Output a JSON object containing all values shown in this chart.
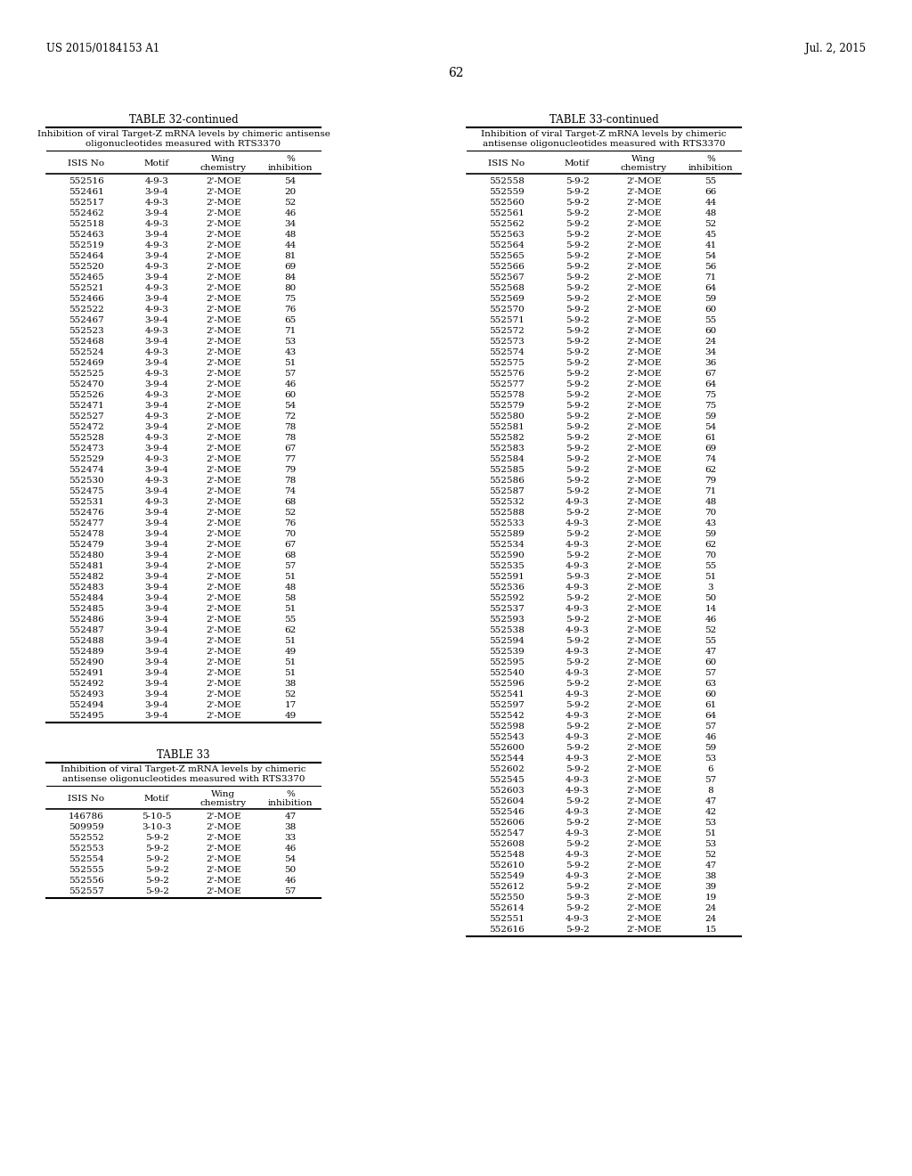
{
  "header_left": "US 2015/0184153 A1",
  "header_right": "Jul. 2, 2015",
  "page_number": "62",
  "table32_title": "TABLE 32-continued",
  "table32_subtitle1": "Inhibition of viral Target-Z mRNA levels by chimeric antisense",
  "table32_subtitle2": "oligonucleotides measured with RTS3370",
  "table32_cols": [
    "ISIS No",
    "Motif",
    "Wing\nchemistry",
    "%\ninhibition"
  ],
  "table32_data": [
    [
      "552516",
      "4-9-3",
      "2'-MOE",
      "54"
    ],
    [
      "552461",
      "3-9-4",
      "2'-MOE",
      "20"
    ],
    [
      "552517",
      "4-9-3",
      "2'-MOE",
      "52"
    ],
    [
      "552462",
      "3-9-4",
      "2'-MOE",
      "46"
    ],
    [
      "552518",
      "4-9-3",
      "2'-MOE",
      "34"
    ],
    [
      "552463",
      "3-9-4",
      "2'-MOE",
      "48"
    ],
    [
      "552519",
      "4-9-3",
      "2'-MOE",
      "44"
    ],
    [
      "552464",
      "3-9-4",
      "2'-MOE",
      "81"
    ],
    [
      "552520",
      "4-9-3",
      "2'-MOE",
      "69"
    ],
    [
      "552465",
      "3-9-4",
      "2'-MOE",
      "84"
    ],
    [
      "552521",
      "4-9-3",
      "2'-MOE",
      "80"
    ],
    [
      "552466",
      "3-9-4",
      "2'-MOE",
      "75"
    ],
    [
      "552522",
      "4-9-3",
      "2'-MOE",
      "76"
    ],
    [
      "552467",
      "3-9-4",
      "2'-MOE",
      "65"
    ],
    [
      "552523",
      "4-9-3",
      "2'-MOE",
      "71"
    ],
    [
      "552468",
      "3-9-4",
      "2'-MOE",
      "53"
    ],
    [
      "552524",
      "4-9-3",
      "2'-MOE",
      "43"
    ],
    [
      "552469",
      "3-9-4",
      "2'-MOE",
      "51"
    ],
    [
      "552525",
      "4-9-3",
      "2'-MOE",
      "57"
    ],
    [
      "552470",
      "3-9-4",
      "2'-MOE",
      "46"
    ],
    [
      "552526",
      "4-9-3",
      "2'-MOE",
      "60"
    ],
    [
      "552471",
      "3-9-4",
      "2'-MOE",
      "54"
    ],
    [
      "552527",
      "4-9-3",
      "2'-MOE",
      "72"
    ],
    [
      "552472",
      "3-9-4",
      "2'-MOE",
      "78"
    ],
    [
      "552528",
      "4-9-3",
      "2'-MOE",
      "78"
    ],
    [
      "552473",
      "3-9-4",
      "2'-MOE",
      "67"
    ],
    [
      "552529",
      "4-9-3",
      "2'-MOE",
      "77"
    ],
    [
      "552474",
      "3-9-4",
      "2'-MOE",
      "79"
    ],
    [
      "552530",
      "4-9-3",
      "2'-MOE",
      "78"
    ],
    [
      "552475",
      "3-9-4",
      "2'-MOE",
      "74"
    ],
    [
      "552531",
      "4-9-3",
      "2'-MOE",
      "68"
    ],
    [
      "552476",
      "3-9-4",
      "2'-MOE",
      "52"
    ],
    [
      "552477",
      "3-9-4",
      "2'-MOE",
      "76"
    ],
    [
      "552478",
      "3-9-4",
      "2'-MOE",
      "70"
    ],
    [
      "552479",
      "3-9-4",
      "2'-MOE",
      "67"
    ],
    [
      "552480",
      "3-9-4",
      "2'-MOE",
      "68"
    ],
    [
      "552481",
      "3-9-4",
      "2'-MOE",
      "57"
    ],
    [
      "552482",
      "3-9-4",
      "2'-MOE",
      "51"
    ],
    [
      "552483",
      "3-9-4",
      "2'-MOE",
      "48"
    ],
    [
      "552484",
      "3-9-4",
      "2'-MOE",
      "58"
    ],
    [
      "552485",
      "3-9-4",
      "2'-MOE",
      "51"
    ],
    [
      "552486",
      "3-9-4",
      "2'-MOE",
      "55"
    ],
    [
      "552487",
      "3-9-4",
      "2'-MOE",
      "62"
    ],
    [
      "552488",
      "3-9-4",
      "2'-MOE",
      "51"
    ],
    [
      "552489",
      "3-9-4",
      "2'-MOE",
      "49"
    ],
    [
      "552490",
      "3-9-4",
      "2'-MOE",
      "51"
    ],
    [
      "552491",
      "3-9-4",
      "2'-MOE",
      "51"
    ],
    [
      "552492",
      "3-9-4",
      "2'-MOE",
      "38"
    ],
    [
      "552493",
      "3-9-4",
      "2'-MOE",
      "52"
    ],
    [
      "552494",
      "3-9-4",
      "2'-MOE",
      "17"
    ],
    [
      "552495",
      "3-9-4",
      "2'-MOE",
      "49"
    ]
  ],
  "table33_title": "TABLE 33",
  "table33_subtitle1": "Inhibition of viral Target-Z mRNA levels by chimeric",
  "table33_subtitle2": "antisense oligonucleotides measured with RTS3370",
  "table33_cols": [
    "ISIS No",
    "Motif",
    "Wing\nchemistry",
    "%\ninhibition"
  ],
  "table33_data": [
    [
      "146786",
      "5-10-5",
      "2'-MOE",
      "47"
    ],
    [
      "509959",
      "3-10-3",
      "2'-MOE",
      "38"
    ],
    [
      "552552",
      "5-9-2",
      "2'-MOE",
      "33"
    ],
    [
      "552553",
      "5-9-2",
      "2'-MOE",
      "46"
    ],
    [
      "552554",
      "5-9-2",
      "2'-MOE",
      "54"
    ],
    [
      "552555",
      "5-9-2",
      "2'-MOE",
      "50"
    ],
    [
      "552556",
      "5-9-2",
      "2'-MOE",
      "46"
    ],
    [
      "552557",
      "5-9-2",
      "2'-MOE",
      "57"
    ]
  ],
  "table33cont_title": "TABLE 33-continued",
  "table33cont_subtitle1": "Inhibition of viral Target-Z mRNA levels by chimeric",
  "table33cont_subtitle2": "antisense oligonucleotides measured with RTS3370",
  "table33cont_cols": [
    "ISIS No",
    "Motif",
    "Wing\nchemistry",
    "%\ninhibition"
  ],
  "table33cont_data": [
    [
      "552558",
      "5-9-2",
      "2'-MOE",
      "55"
    ],
    [
      "552559",
      "5-9-2",
      "2'-MOE",
      "66"
    ],
    [
      "552560",
      "5-9-2",
      "2'-MOE",
      "44"
    ],
    [
      "552561",
      "5-9-2",
      "2'-MOE",
      "48"
    ],
    [
      "552562",
      "5-9-2",
      "2'-MOE",
      "52"
    ],
    [
      "552563",
      "5-9-2",
      "2'-MOE",
      "45"
    ],
    [
      "552564",
      "5-9-2",
      "2'-MOE",
      "41"
    ],
    [
      "552565",
      "5-9-2",
      "2'-MOE",
      "54"
    ],
    [
      "552566",
      "5-9-2",
      "2'-MOE",
      "56"
    ],
    [
      "552567",
      "5-9-2",
      "2'-MOE",
      "71"
    ],
    [
      "552568",
      "5-9-2",
      "2'-MOE",
      "64"
    ],
    [
      "552569",
      "5-9-2",
      "2'-MOE",
      "59"
    ],
    [
      "552570",
      "5-9-2",
      "2'-MOE",
      "60"
    ],
    [
      "552571",
      "5-9-2",
      "2'-MOE",
      "55"
    ],
    [
      "552572",
      "5-9-2",
      "2'-MOE",
      "60"
    ],
    [
      "552573",
      "5-9-2",
      "2'-MOE",
      "24"
    ],
    [
      "552574",
      "5-9-2",
      "2'-MOE",
      "34"
    ],
    [
      "552575",
      "5-9-2",
      "2'-MOE",
      "36"
    ],
    [
      "552576",
      "5-9-2",
      "2'-MOE",
      "67"
    ],
    [
      "552577",
      "5-9-2",
      "2'-MOE",
      "64"
    ],
    [
      "552578",
      "5-9-2",
      "2'-MOE",
      "75"
    ],
    [
      "552579",
      "5-9-2",
      "2'-MOE",
      "75"
    ],
    [
      "552580",
      "5-9-2",
      "2'-MOE",
      "59"
    ],
    [
      "552581",
      "5-9-2",
      "2'-MOE",
      "54"
    ],
    [
      "552582",
      "5-9-2",
      "2'-MOE",
      "61"
    ],
    [
      "552583",
      "5-9-2",
      "2'-MOE",
      "69"
    ],
    [
      "552584",
      "5-9-2",
      "2'-MOE",
      "74"
    ],
    [
      "552585",
      "5-9-2",
      "2'-MOE",
      "62"
    ],
    [
      "552586",
      "5-9-2",
      "2'-MOE",
      "79"
    ],
    [
      "552587",
      "5-9-2",
      "2'-MOE",
      "71"
    ],
    [
      "552532",
      "4-9-3",
      "2'-MOE",
      "48"
    ],
    [
      "552588",
      "5-9-2",
      "2'-MOE",
      "70"
    ],
    [
      "552533",
      "4-9-3",
      "2'-MOE",
      "43"
    ],
    [
      "552589",
      "5-9-2",
      "2'-MOE",
      "59"
    ],
    [
      "552534",
      "4-9-3",
      "2'-MOE",
      "62"
    ],
    [
      "552590",
      "5-9-2",
      "2'-MOE",
      "70"
    ],
    [
      "552535",
      "4-9-3",
      "2'-MOE",
      "55"
    ],
    [
      "552591",
      "5-9-3",
      "2'-MOE",
      "51"
    ],
    [
      "552536",
      "4-9-3",
      "2'-MOE",
      "3"
    ],
    [
      "552592",
      "5-9-2",
      "2'-MOE",
      "50"
    ],
    [
      "552537",
      "4-9-3",
      "2'-MOE",
      "14"
    ],
    [
      "552593",
      "5-9-2",
      "2'-MOE",
      "46"
    ],
    [
      "552538",
      "4-9-3",
      "2'-MOE",
      "52"
    ],
    [
      "552594",
      "5-9-2",
      "2'-MOE",
      "55"
    ],
    [
      "552539",
      "4-9-3",
      "2'-MOE",
      "47"
    ],
    [
      "552595",
      "5-9-2",
      "2'-MOE",
      "60"
    ],
    [
      "552540",
      "4-9-3",
      "2'-MOE",
      "57"
    ],
    [
      "552596",
      "5-9-2",
      "2'-MOE",
      "63"
    ],
    [
      "552541",
      "4-9-3",
      "2'-MOE",
      "60"
    ],
    [
      "552597",
      "5-9-2",
      "2'-MOE",
      "61"
    ],
    [
      "552542",
      "4-9-3",
      "2'-MOE",
      "64"
    ],
    [
      "552598",
      "5-9-2",
      "2'-MOE",
      "57"
    ],
    [
      "552543",
      "4-9-3",
      "2'-MOE",
      "46"
    ],
    [
      "552600",
      "5-9-2",
      "2'-MOE",
      "59"
    ],
    [
      "552544",
      "4-9-3",
      "2'-MOE",
      "53"
    ],
    [
      "552602",
      "5-9-2",
      "2'-MOE",
      "6"
    ],
    [
      "552545",
      "4-9-3",
      "2'-MOE",
      "57"
    ],
    [
      "552603",
      "4-9-3",
      "2'-MOE",
      "8"
    ],
    [
      "552604",
      "5-9-2",
      "2'-MOE",
      "47"
    ],
    [
      "552546",
      "4-9-3",
      "2'-MOE",
      "42"
    ],
    [
      "552606",
      "5-9-2",
      "2'-MOE",
      "53"
    ],
    [
      "552547",
      "4-9-3",
      "2'-MOE",
      "51"
    ],
    [
      "552608",
      "5-9-2",
      "2'-MOE",
      "53"
    ],
    [
      "552548",
      "4-9-3",
      "2'-MOE",
      "52"
    ],
    [
      "552610",
      "5-9-2",
      "2'-MOE",
      "47"
    ],
    [
      "552549",
      "4-9-3",
      "2'-MOE",
      "38"
    ],
    [
      "552612",
      "5-9-2",
      "2'-MOE",
      "39"
    ],
    [
      "552550",
      "5-9-3",
      "2'-MOE",
      "19"
    ],
    [
      "552614",
      "5-9-2",
      "2'-MOE",
      "24"
    ],
    [
      "552551",
      "4-9-3",
      "2'-MOE",
      "24"
    ],
    [
      "552616",
      "5-9-2",
      "2'-MOE",
      "15"
    ]
  ]
}
